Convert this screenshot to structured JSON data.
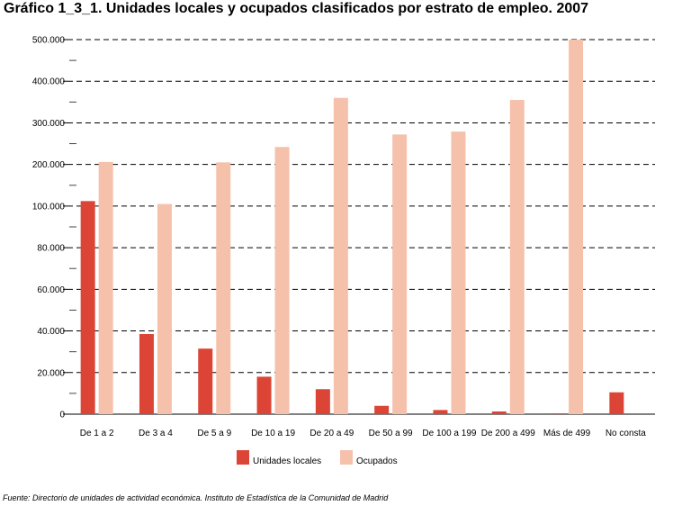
{
  "chart_data": {
    "type": "bar",
    "title": "Gráfico 1_3_1. Unidades locales y ocupados clasificados por estrato de empleo. 2007",
    "source": "Fuente: Directorio de unidades de actividad económica. Instituto de Estadística de la Comunidad de Madrid",
    "categories": [
      "De 1 a 2",
      "De 3 a 4",
      "De 5 a 9",
      "De 10 a 19",
      "De 20 a 49",
      "De 50 a 99",
      "De 100 a 199",
      "De 200 a 499",
      "Más de 499",
      "No consta"
    ],
    "y_tick_labels": [
      "0",
      "20.000",
      "40.000",
      "60.000",
      "80.000",
      "100.000",
      "200.000",
      "300.000",
      "400.000",
      "500.000"
    ],
    "y_scale_note": "Broken scale: evenly spaced steps of 20.000 from 0 to 100.000, then steps of 100.000 up to 500.000",
    "series": [
      {
        "name": "Unidades locales",
        "color": "#dc4536",
        "values": [
          112000,
          38500,
          31500,
          18000,
          12000,
          4000,
          2000,
          1300,
          400,
          10500
        ]
      },
      {
        "name": "Ocupados",
        "color": "#f5c1ab",
        "values": [
          206000,
          105000,
          205000,
          242000,
          360000,
          272000,
          279000,
          355000,
          500000,
          0
        ]
      }
    ],
    "grid": true,
    "legend": "bottom"
  }
}
